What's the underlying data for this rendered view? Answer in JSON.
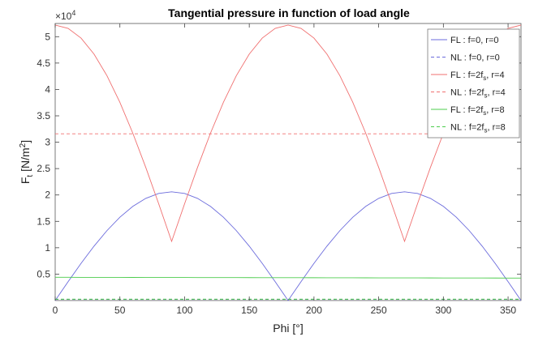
{
  "chart_data": {
    "type": "line",
    "title": "Tangential pressure in function of load angle",
    "xlabel": "Phi [°]",
    "ylabel_main": "F",
    "ylabel_sub": "t",
    "ylabel_unit": " [N/m",
    "ylabel_sup": "2",
    "ylabel_close": "]",
    "y_exponent_prefix": "×10",
    "y_exponent_power": "4",
    "xlim": [
      0,
      360
    ],
    "ylim": [
      0,
      52500
    ],
    "xticks": [
      0,
      50,
      100,
      150,
      200,
      250,
      300,
      350
    ],
    "xtick_labels": [
      "0",
      "50",
      "100",
      "150",
      "200",
      "250",
      "300",
      "350"
    ],
    "yticks": [
      5000,
      10000,
      15000,
      20000,
      25000,
      30000,
      35000,
      40000,
      45000,
      50000
    ],
    "ytick_labels": [
      "0.5",
      "1",
      "1.5",
      "2",
      "2.5",
      "3",
      "3.5",
      "4",
      "4.5",
      "5"
    ],
    "grid": false,
    "legend_position": "top-right",
    "series": [
      {
        "name": "FL : f=0, r=0",
        "color": "#6b6bdc",
        "dash": "solid",
        "formula": "abs_sin",
        "amplitude": 20600,
        "offset": 0
      },
      {
        "name": "NL : f=0, r=0",
        "color": "#6b6bdc",
        "dash": "dashed",
        "formula": "constant",
        "value": 200
      },
      {
        "name": "FL : f=2f",
        "name_sub": "s",
        "name_rest": ", r=4",
        "color": "#f07070",
        "dash": "solid",
        "formula": "abs_cos",
        "amplitude": 41000,
        "offset": 11200
      },
      {
        "name": "NL : f=2f",
        "name_sub": "s",
        "name_rest": ", r=4",
        "color": "#f07070",
        "dash": "dashed",
        "formula": "constant",
        "value": 31600
      },
      {
        "name": "FL : f=2f",
        "name_sub": "s",
        "name_rest": ", r=8",
        "color": "#4ccc4c",
        "dash": "solid",
        "formula": "linear",
        "start": 4400,
        "end": 4250
      },
      {
        "name": "NL : f=2f",
        "name_sub": "s",
        "name_rest": ", r=8",
        "color": "#4ccc4c",
        "dash": "dashed",
        "formula": "constant",
        "value": 250
      }
    ]
  }
}
